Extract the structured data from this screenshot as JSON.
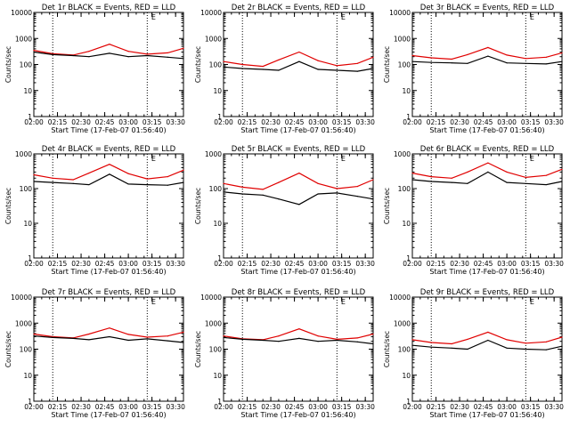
{
  "colors": {
    "events": "#000000",
    "lld": "#e00000",
    "axes": "#000000",
    "background": "#ffffff"
  },
  "chart_data": [
    {
      "type": "line",
      "title": "Det 1r BLACK = Events, RED = LLD",
      "ylabel": "Counts/sec",
      "xlabel": "Start Time (17-Feb-07 01:56:40)",
      "y_scale": "log",
      "ylim": [
        1,
        10000
      ],
      "xlim": [
        "02:00",
        "03:35"
      ],
      "x_tick_labels": [
        "02:00",
        "02:15",
        "02:30",
        "02:45",
        "03:00",
        "03:15",
        "03:30"
      ],
      "y_tick_labels": [
        "1",
        "10",
        "100",
        "1000",
        "10000"
      ],
      "vertical_dotted_lines": [
        "02:12",
        "03:12"
      ],
      "annotation": "E",
      "series": [
        {
          "x": [
            "02:00",
            "02:12",
            "02:25",
            "02:35",
            "02:48",
            "03:00",
            "03:12",
            "03:25",
            "03:35"
          ],
          "values": [
            350,
            260,
            230,
            320,
            600,
            320,
            250,
            280,
            420
          ]
        },
        {
          "x": [
            "02:00",
            "02:12",
            "02:25",
            "02:35",
            "02:48",
            "03:00",
            "03:12",
            "03:25",
            "03:35"
          ],
          "values": [
            300,
            240,
            220,
            200,
            270,
            200,
            220,
            190,
            170
          ]
        }
      ]
    },
    {
      "type": "line",
      "title": "Det 2r BLACK = Events, RED = LLD",
      "ylabel": "Counts/sec",
      "xlabel": "Start Time (17-Feb-07 01:56:40)",
      "y_scale": "log",
      "ylim": [
        1,
        10000
      ],
      "xlim": [
        "02:00",
        "03:35"
      ],
      "x_tick_labels": [
        "02:00",
        "02:15",
        "02:30",
        "02:45",
        "03:00",
        "03:15",
        "03:30"
      ],
      "y_tick_labels": [
        "1",
        "10",
        "100",
        "1000",
        "10000"
      ],
      "vertical_dotted_lines": [
        "02:12",
        "03:12"
      ],
      "annotation": "E",
      "series": [
        {
          "x": [
            "02:00",
            "02:12",
            "02:25",
            "02:35",
            "02:48",
            "03:00",
            "03:12",
            "03:25",
            "03:35"
          ],
          "values": [
            130,
            100,
            85,
            150,
            300,
            140,
            90,
            110,
            190
          ]
        },
        {
          "x": [
            "02:00",
            "02:12",
            "02:25",
            "02:35",
            "02:48",
            "03:00",
            "03:12",
            "03:25",
            "03:35"
          ],
          "values": [
            80,
            70,
            65,
            60,
            130,
            65,
            60,
            55,
            70
          ]
        }
      ]
    },
    {
      "type": "line",
      "title": "Det 3r BLACK = Events, RED = LLD",
      "ylabel": "Counts/sec",
      "xlabel": "Start Time (17-Feb-07 01:56:40)",
      "y_scale": "log",
      "ylim": [
        1,
        10000
      ],
      "xlim": [
        "02:00",
        "03:35"
      ],
      "x_tick_labels": [
        "02:00",
        "02:15",
        "02:30",
        "02:45",
        "03:00",
        "03:15",
        "03:30"
      ],
      "y_tick_labels": [
        "1",
        "10",
        "100",
        "1000",
        "10000"
      ],
      "vertical_dotted_lines": [
        "02:12",
        "03:12"
      ],
      "annotation": "E",
      "series": [
        {
          "x": [
            "02:00",
            "02:12",
            "02:25",
            "02:35",
            "02:48",
            "03:00",
            "03:12",
            "03:25",
            "03:35"
          ],
          "values": [
            220,
            180,
            160,
            240,
            450,
            230,
            170,
            190,
            280
          ]
        },
        {
          "x": [
            "02:00",
            "02:12",
            "02:25",
            "02:35",
            "02:48",
            "03:00",
            "03:12",
            "03:25",
            "03:35"
          ],
          "values": [
            130,
            120,
            115,
            110,
            210,
            115,
            110,
            105,
            130
          ]
        }
      ]
    },
    {
      "type": "line",
      "title": "Det 4r BLACK = Events, RED = LLD",
      "ylabel": "Counts/sec",
      "xlabel": "Start Time (17-Feb-07 01:56:40)",
      "y_scale": "log",
      "ylim": [
        1,
        1000
      ],
      "xlim": [
        "02:00",
        "03:35"
      ],
      "x_tick_labels": [
        "02:00",
        "02:15",
        "02:30",
        "02:45",
        "03:00",
        "03:15",
        "03:30"
      ],
      "y_tick_labels": [
        "1",
        "10",
        "100",
        "1000"
      ],
      "vertical_dotted_lines": [
        "02:12",
        "03:12"
      ],
      "annotation": "E",
      "series": [
        {
          "x": [
            "02:00",
            "02:12",
            "02:25",
            "02:35",
            "02:48",
            "03:00",
            "03:12",
            "03:25",
            "03:35"
          ],
          "values": [
            250,
            200,
            180,
            280,
            500,
            270,
            190,
            220,
            340
          ]
        },
        {
          "x": [
            "02:00",
            "02:12",
            "02:25",
            "02:35",
            "02:48",
            "03:00",
            "03:12",
            "03:25",
            "03:35"
          ],
          "values": [
            160,
            150,
            140,
            130,
            260,
            135,
            130,
            125,
            150
          ]
        }
      ]
    },
    {
      "type": "line",
      "title": "Det 5r BLACK = Events, RED = LLD",
      "ylabel": "Counts/sec",
      "xlabel": "Start Time (17-Feb-07 01:56:40)",
      "y_scale": "log",
      "ylim": [
        1,
        1000
      ],
      "xlim": [
        "02:00",
        "03:35"
      ],
      "x_tick_labels": [
        "02:00",
        "02:15",
        "02:30",
        "02:45",
        "03:00",
        "03:15",
        "03:30"
      ],
      "y_tick_labels": [
        "1",
        "10",
        "100",
        "1000"
      ],
      "vertical_dotted_lines": [
        "02:12",
        "03:12"
      ],
      "annotation": "E",
      "series": [
        {
          "x": [
            "02:00",
            "02:12",
            "02:25",
            "02:35",
            "02:48",
            "03:00",
            "03:12",
            "03:25",
            "03:35"
          ],
          "values": [
            140,
            110,
            95,
            150,
            280,
            140,
            100,
            115,
            180
          ]
        },
        {
          "x": [
            "02:00",
            "02:12",
            "02:25",
            "02:35",
            "02:48",
            "03:00",
            "03:12",
            "03:25",
            "03:35"
          ],
          "values": [
            80,
            70,
            65,
            50,
            35,
            70,
            75,
            60,
            50
          ]
        }
      ]
    },
    {
      "type": "line",
      "title": "Det 6r BLACK = Events, RED = LLD",
      "ylabel": "Counts/sec",
      "xlabel": "Start Time (17-Feb-07 01:56:40)",
      "y_scale": "log",
      "ylim": [
        1,
        1000
      ],
      "xlim": [
        "02:00",
        "03:35"
      ],
      "x_tick_labels": [
        "02:00",
        "02:15",
        "02:30",
        "02:45",
        "03:00",
        "03:15",
        "03:30"
      ],
      "y_tick_labels": [
        "1",
        "10",
        "100",
        "1000"
      ],
      "vertical_dotted_lines": [
        "02:12",
        "03:12"
      ],
      "annotation": "E",
      "series": [
        {
          "x": [
            "02:00",
            "02:12",
            "02:25",
            "02:35",
            "02:48",
            "03:00",
            "03:12",
            "03:25",
            "03:35"
          ],
          "values": [
            280,
            220,
            200,
            300,
            550,
            300,
            210,
            240,
            360
          ]
        },
        {
          "x": [
            "02:00",
            "02:12",
            "02:25",
            "02:35",
            "02:48",
            "03:00",
            "03:12",
            "03:25",
            "03:35"
          ],
          "values": [
            180,
            160,
            150,
            140,
            300,
            150,
            140,
            130,
            160
          ]
        }
      ]
    },
    {
      "type": "line",
      "title": "Det 7r BLACK = Events, RED = LLD",
      "ylabel": "Counts/sec",
      "xlabel": "Start Time (17-Feb-07 01:56:40)",
      "y_scale": "log",
      "ylim": [
        1,
        10000
      ],
      "xlim": [
        "02:00",
        "03:35"
      ],
      "x_tick_labels": [
        "02:00",
        "02:15",
        "02:30",
        "02:45",
        "03:00",
        "03:15",
        "03:30"
      ],
      "y_tick_labels": [
        "1",
        "10",
        "100",
        "1000",
        "10000"
      ],
      "vertical_dotted_lines": [
        "02:12",
        "03:12"
      ],
      "annotation": "E",
      "series": [
        {
          "x": [
            "02:00",
            "02:12",
            "02:25",
            "02:35",
            "02:48",
            "03:00",
            "03:12",
            "03:25",
            "03:35"
          ],
          "values": [
            380,
            300,
            270,
            380,
            650,
            370,
            290,
            320,
            450
          ]
        },
        {
          "x": [
            "02:00",
            "02:12",
            "02:25",
            "02:35",
            "02:48",
            "03:00",
            "03:12",
            "03:25",
            "03:35"
          ],
          "values": [
            320,
            280,
            260,
            230,
            300,
            220,
            250,
            210,
            180
          ]
        }
      ]
    },
    {
      "type": "line",
      "title": "Det 8r BLACK = Events, RED = LLD",
      "ylabel": "Counts/sec",
      "xlabel": "Start Time (17-Feb-07 01:56:40)",
      "y_scale": "log",
      "ylim": [
        1,
        10000
      ],
      "xlim": [
        "02:00",
        "03:35"
      ],
      "x_tick_labels": [
        "02:00",
        "02:15",
        "02:30",
        "02:45",
        "03:00",
        "03:15",
        "03:30"
      ],
      "y_tick_labels": [
        "1",
        "10",
        "100",
        "1000",
        "10000"
      ],
      "vertical_dotted_lines": [
        "02:12",
        "03:12"
      ],
      "annotation": "E",
      "series": [
        {
          "x": [
            "02:00",
            "02:12",
            "02:25",
            "02:35",
            "02:48",
            "03:00",
            "03:12",
            "03:25",
            "03:35"
          ],
          "values": [
            320,
            250,
            230,
            320,
            600,
            320,
            240,
            270,
            380
          ]
        },
        {
          "x": [
            "02:00",
            "02:12",
            "02:25",
            "02:35",
            "02:48",
            "03:00",
            "03:12",
            "03:25",
            "03:35"
          ],
          "values": [
            280,
            240,
            220,
            200,
            260,
            200,
            220,
            190,
            160
          ]
        }
      ]
    },
    {
      "type": "line",
      "title": "Det 9r BLACK = Events, RED = LLD",
      "ylabel": "Counts/sec",
      "xlabel": "Start Time (17-Feb-07 01:56:40)",
      "y_scale": "log",
      "ylim": [
        1,
        10000
      ],
      "xlim": [
        "02:00",
        "03:35"
      ],
      "x_tick_labels": [
        "02:00",
        "02:15",
        "02:30",
        "02:45",
        "03:00",
        "03:15",
        "03:30"
      ],
      "y_tick_labels": [
        "1",
        "10",
        "100",
        "1000",
        "10000"
      ],
      "vertical_dotted_lines": [
        "02:12",
        "03:12"
      ],
      "annotation": "E",
      "series": [
        {
          "x": [
            "02:00",
            "02:12",
            "02:25",
            "02:35",
            "02:48",
            "03:00",
            "03:12",
            "03:25",
            "03:35"
          ],
          "values": [
            230,
            180,
            160,
            240,
            450,
            230,
            170,
            190,
            290
          ]
        },
        {
          "x": [
            "02:00",
            "02:12",
            "02:25",
            "02:35",
            "02:48",
            "03:00",
            "03:12",
            "03:25",
            "03:35"
          ],
          "values": [
            140,
            120,
            110,
            100,
            220,
            110,
            100,
            95,
            130
          ]
        }
      ]
    }
  ]
}
